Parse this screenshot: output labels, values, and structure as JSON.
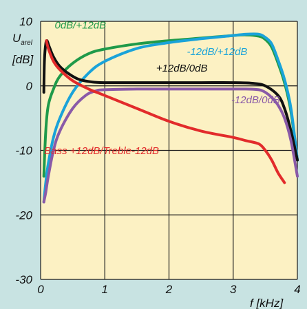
{
  "colors": {
    "background": "#c8e3e2",
    "plot_area": "#fcf1c3",
    "grid": "#1a1a1a"
  },
  "chart_data": {
    "type": "line",
    "title": "",
    "ylabel": "U",
    "ylabel_sub": "arel",
    "yunit": "[dB]",
    "xlabel": "f [kHz]",
    "xlim": [
      0,
      4
    ],
    "ylim": [
      -30,
      10
    ],
    "xticks": [
      "0",
      "1",
      "2",
      "3",
      "4"
    ],
    "yticks": [
      "10",
      "0",
      "-10",
      "-20",
      "-30"
    ],
    "xtick_values": [
      0,
      1,
      2,
      3,
      4
    ],
    "ytick_values": [
      10,
      0,
      -10,
      -20,
      -30
    ],
    "grid": true,
    "series": [
      {
        "name": "0dB/+12dB",
        "color": "#1f9a4a",
        "x": [
          0.05,
          0.08,
          0.12,
          0.2,
          0.3,
          0.5,
          0.75,
          1.0,
          1.5,
          2.0,
          2.5,
          3.0,
          3.2,
          3.4,
          3.5,
          3.6,
          3.7,
          3.8,
          3.9,
          4.0
        ],
        "y": [
          -14,
          -7,
          -3,
          -0.5,
          1.5,
          3.5,
          5.0,
          5.7,
          6.5,
          7.0,
          7.4,
          7.8,
          7.9,
          7.7,
          7.2,
          6.0,
          3.5,
          0.5,
          -4.0,
          -11.5
        ]
      },
      {
        "name": "-12dB/+12dB",
        "color": "#1aa3d9",
        "x": [
          0.05,
          0.08,
          0.12,
          0.2,
          0.3,
          0.5,
          0.75,
          1.0,
          1.5,
          2.0,
          2.5,
          3.0,
          3.2,
          3.4,
          3.5,
          3.6,
          3.7,
          3.8,
          3.9,
          4.0
        ],
        "y": [
          -18,
          -15,
          -12,
          -8,
          -5,
          -1,
          2.0,
          3.8,
          5.8,
          6.7,
          7.3,
          7.8,
          8.0,
          8.0,
          7.5,
          6.5,
          4.0,
          1.0,
          -3.5,
          -11.5
        ]
      },
      {
        "name": "+12dB/0dB",
        "color": "#111111",
        "x": [
          0.05,
          0.06,
          0.08,
          0.1,
          0.13,
          0.2,
          0.3,
          0.45,
          0.6,
          0.8,
          1.0,
          1.5,
          2.0,
          2.5,
          3.0,
          3.3,
          3.5,
          3.7,
          3.8,
          3.9,
          4.0
        ],
        "y": [
          -1,
          4,
          6.5,
          7.0,
          6.2,
          4.5,
          3.0,
          1.8,
          1.0,
          0.6,
          0.5,
          0.5,
          0.5,
          0.5,
          0.5,
          0.4,
          0,
          -1.5,
          -3.5,
          -7,
          -11.5
        ]
      },
      {
        "name": "-12dB/0dB",
        "color": "#8a5aa8",
        "x": [
          0.05,
          0.08,
          0.12,
          0.2,
          0.3,
          0.5,
          0.7,
          0.85,
          1.0,
          1.5,
          2.0,
          2.5,
          3.0,
          3.2,
          3.4,
          3.5,
          3.6,
          3.7,
          3.8,
          3.9,
          4.0
        ],
        "y": [
          -18,
          -16.5,
          -14,
          -10,
          -7,
          -3.5,
          -1.5,
          -0.8,
          -0.6,
          -0.5,
          -0.5,
          -0.5,
          -0.5,
          -0.5,
          -0.6,
          -1.0,
          -1.8,
          -3.0,
          -5.0,
          -8.5,
          -14
        ]
      },
      {
        "name": "Bass +12dB/Treble-12dB",
        "color": "#e22b2b",
        "x": [
          0.09,
          0.1,
          0.13,
          0.2,
          0.3,
          0.5,
          0.75,
          1.0,
          1.5,
          2.0,
          2.5,
          3.0,
          3.2,
          3.4,
          3.5,
          3.6,
          3.7,
          3.8
        ],
        "y": [
          7.0,
          6.5,
          5.5,
          3.8,
          2.5,
          0.8,
          -0.5,
          -1.5,
          -3.5,
          -5.5,
          -7.0,
          -8.0,
          -8.5,
          -9.0,
          -10.0,
          -11.5,
          -13.5,
          -15.0
        ]
      }
    ],
    "annotations": [
      {
        "text": "0dB/+12dB",
        "x": 0.62,
        "y": 8.9,
        "color": "#1f9a4a"
      },
      {
        "text": "-12dB/+12dB",
        "x": 2.75,
        "y": 4.8,
        "color": "#1aa3d9"
      },
      {
        "text": "+12dB/0dB",
        "x": 2.2,
        "y": 2.2,
        "color": "#111111"
      },
      {
        "text": "-12dB/0dB",
        "x": 3.35,
        "y": -2.7,
        "color": "#8a5aa8"
      },
      {
        "text": "Bass +12dB/Treble-12dB",
        "x": 0.95,
        "y": -10.6,
        "color": "#e22b2b"
      }
    ]
  }
}
